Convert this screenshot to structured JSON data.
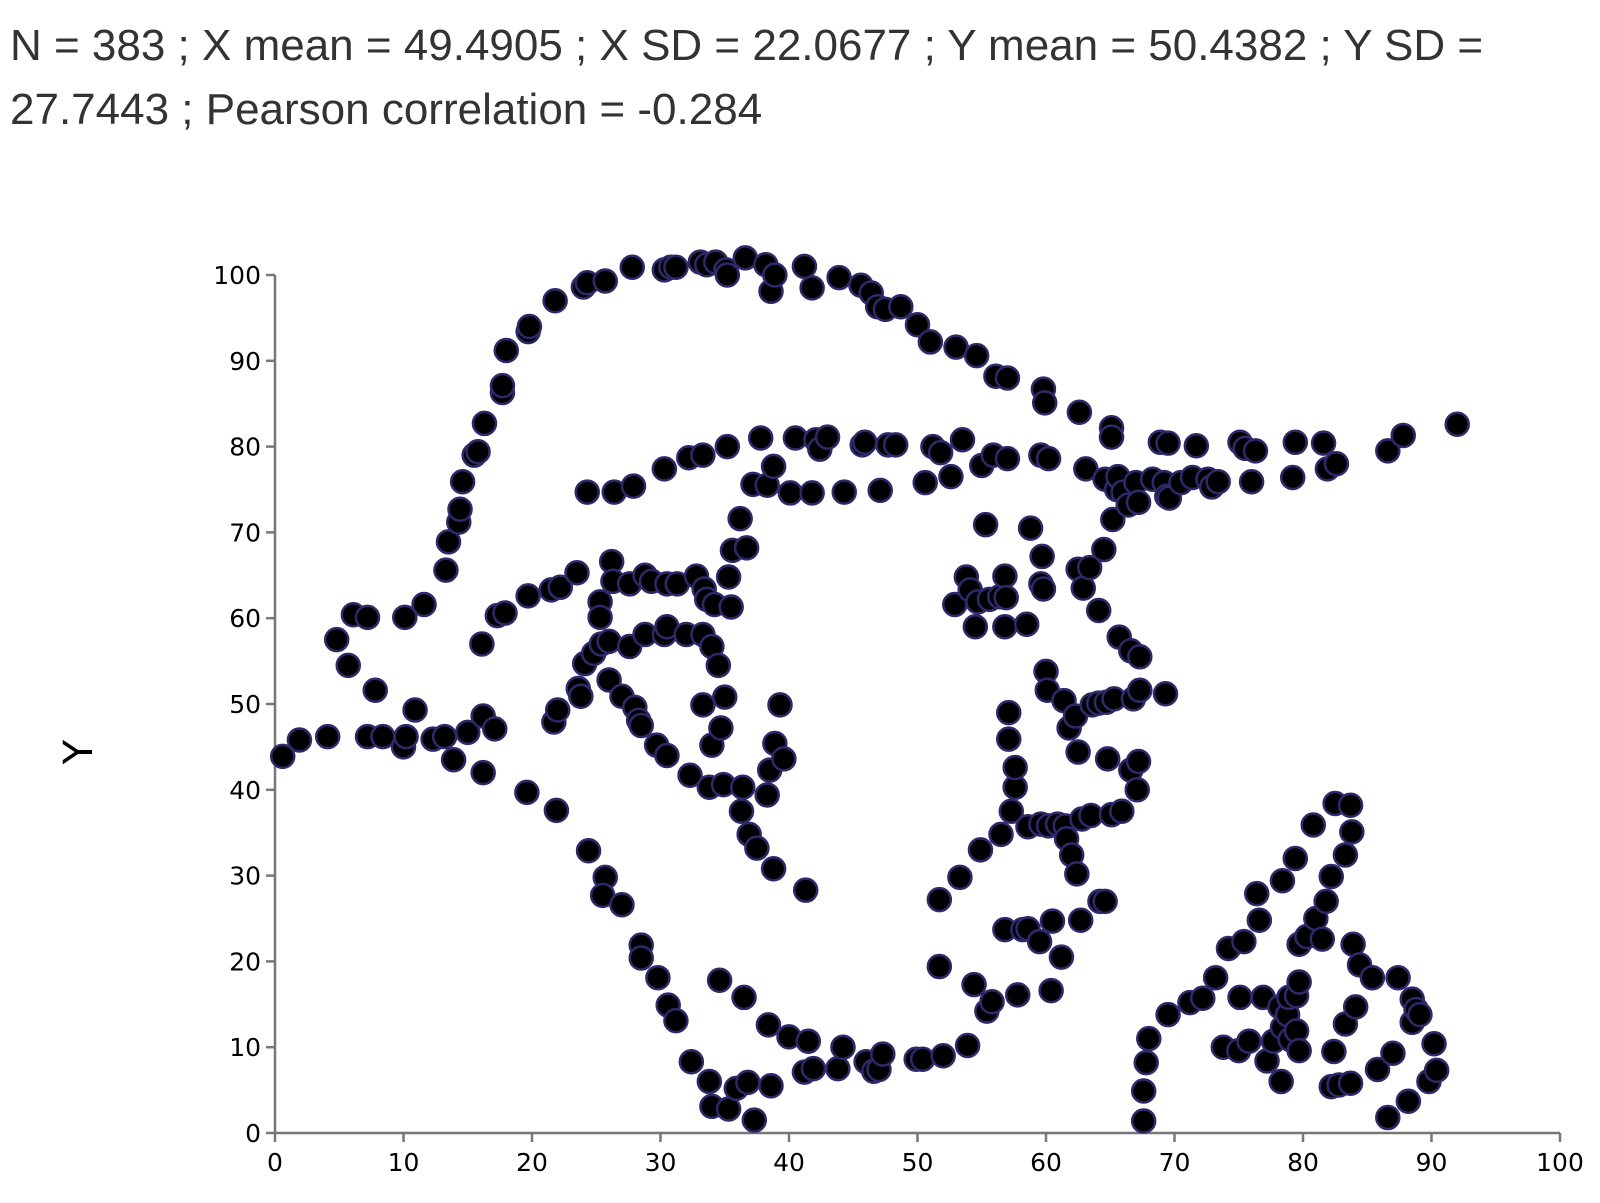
{
  "summary": "N = 383 ; X mean = 49.4905 ; X SD = 22.0677 ; Y mean = 50.4382 ; Y SD = 27.7443 ; Pearson correlation = -0.284",
  "colors": {
    "point_fill": "#000000",
    "point_stroke": "#2d2a6b",
    "axis": "#777777",
    "text": "#333333"
  },
  "chart_data": {
    "type": "scatter",
    "title": "",
    "xlabel": "",
    "ylabel": "Y",
    "xlim": [
      0,
      100
    ],
    "ylim": [
      0,
      100
    ],
    "x_ticks": [
      "0",
      "10",
      "20",
      "30",
      "40",
      "50",
      "60",
      "70",
      "80",
      "90",
      "100"
    ],
    "y_ticks": [
      "0",
      "10",
      "20",
      "30",
      "40",
      "50",
      "60",
      "70",
      "80",
      "90",
      "100"
    ],
    "grid": false,
    "points": [
      [
        0.6,
        43.9
      ],
      [
        1.9,
        45.8
      ],
      [
        4.1,
        46.2
      ],
      [
        4.8,
        57.5
      ],
      [
        5.7,
        54.5
      ],
      [
        6.1,
        60.4
      ],
      [
        7.2,
        60.1
      ],
      [
        7.2,
        46.2
      ],
      [
        7.8,
        51.6
      ],
      [
        8.4,
        46.2
      ],
      [
        10.0,
        45.0
      ],
      [
        10.1,
        60.1
      ],
      [
        10.2,
        46.2
      ],
      [
        10.9,
        49.3
      ],
      [
        11.6,
        61.6
      ],
      [
        12.3,
        45.9
      ],
      [
        13.2,
        46.2
      ],
      [
        13.3,
        65.6
      ],
      [
        13.5,
        68.9
      ],
      [
        13.9,
        43.5
      ],
      [
        14.3,
        71.2
      ],
      [
        14.4,
        72.7
      ],
      [
        14.6,
        75.9
      ],
      [
        15.0,
        46.7
      ],
      [
        15.5,
        79.0
      ],
      [
        15.8,
        79.4
      ],
      [
        16.1,
        57.0
      ],
      [
        16.2,
        42.0
      ],
      [
        16.2,
        48.6
      ],
      [
        16.3,
        82.7
      ],
      [
        17.1,
        47.1
      ],
      [
        17.3,
        60.3
      ],
      [
        17.7,
        86.3
      ],
      [
        17.7,
        87.1
      ],
      [
        17.9,
        60.6
      ],
      [
        18.0,
        91.2
      ],
      [
        19.7,
        62.6
      ],
      [
        19.6,
        39.7
      ],
      [
        19.7,
        93.4
      ],
      [
        19.8,
        94.0
      ],
      [
        21.5,
        63.3
      ],
      [
        21.8,
        97.0
      ],
      [
        21.7,
        47.9
      ],
      [
        21.9,
        37.6
      ],
      [
        22.0,
        49.3
      ],
      [
        22.2,
        63.6
      ],
      [
        23.5,
        65.3
      ],
      [
        23.6,
        51.8
      ],
      [
        23.8,
        50.9
      ],
      [
        24.0,
        98.6
      ],
      [
        24.1,
        54.7
      ],
      [
        24.3,
        99.1
      ],
      [
        24.3,
        74.7
      ],
      [
        24.4,
        32.9
      ],
      [
        24.8,
        55.9
      ],
      [
        25.3,
        61.9
      ],
      [
        25.3,
        60.1
      ],
      [
        25.4,
        57.0
      ],
      [
        25.7,
        99.3
      ],
      [
        25.7,
        29.8
      ],
      [
        25.5,
        27.7
      ],
      [
        26.0,
        52.8
      ],
      [
        26.0,
        57.3
      ],
      [
        26.2,
        66.6
      ],
      [
        26.3,
        64.3
      ],
      [
        26.4,
        74.7
      ],
      [
        27.0,
        50.9
      ],
      [
        27.0,
        26.6
      ],
      [
        27.6,
        56.7
      ],
      [
        27.8,
        100.9
      ],
      [
        27.6,
        64.0
      ],
      [
        27.9,
        75.4
      ],
      [
        28.0,
        49.6
      ],
      [
        28.3,
        48.1
      ],
      [
        28.5,
        47.5
      ],
      [
        28.8,
        65.0
      ],
      [
        28.8,
        58.1
      ],
      [
        28.5,
        21.9
      ],
      [
        28.5,
        20.4
      ],
      [
        29.3,
        64.3
      ],
      [
        29.7,
        45.2
      ],
      [
        29.8,
        18.1
      ],
      [
        30.3,
        77.4
      ],
      [
        30.3,
        58.1
      ],
      [
        30.5,
        64.0
      ],
      [
        30.3,
        100.6
      ],
      [
        30.5,
        59.0
      ],
      [
        30.5,
        44.0
      ],
      [
        30.6,
        14.9
      ],
      [
        30.8,
        100.9
      ],
      [
        31.2,
        13.1
      ],
      [
        31.3,
        64.0
      ],
      [
        31.2,
        100.9
      ],
      [
        32.0,
        58.1
      ],
      [
        32.2,
        78.7
      ],
      [
        32.3,
        41.7
      ],
      [
        32.4,
        8.3
      ],
      [
        32.8,
        64.9
      ],
      [
        33.1,
        101.5
      ],
      [
        33.3,
        58.1
      ],
      [
        33.4,
        63.4
      ],
      [
        33.3,
        49.9
      ],
      [
        33.3,
        79.0
      ],
      [
        33.6,
        101.2
      ],
      [
        33.6,
        62.2
      ],
      [
        33.8,
        6.0
      ],
      [
        33.8,
        40.3
      ],
      [
        34.0,
        56.7
      ],
      [
        34.0,
        45.2
      ],
      [
        34.0,
        3.1
      ],
      [
        34.3,
        101.5
      ],
      [
        34.2,
        61.6
      ],
      [
        34.5,
        54.5
      ],
      [
        34.6,
        17.8
      ],
      [
        34.7,
        47.2
      ],
      [
        34.9,
        40.6
      ],
      [
        35.0,
        50.8
      ],
      [
        35.1,
        100.6
      ],
      [
        35.2,
        100.0
      ],
      [
        35.3,
        64.8
      ],
      [
        35.3,
        2.8
      ],
      [
        35.5,
        61.3
      ],
      [
        35.2,
        80.0
      ],
      [
        35.6,
        67.9
      ],
      [
        35.9,
        5.2
      ],
      [
        36.2,
        71.6
      ],
      [
        36.3,
        37.5
      ],
      [
        36.4,
        40.3
      ],
      [
        36.5,
        15.8
      ],
      [
        36.6,
        102.0
      ],
      [
        36.7,
        68.2
      ],
      [
        36.8,
        5.9
      ],
      [
        36.9,
        34.8
      ],
      [
        37.2,
        75.6
      ],
      [
        37.3,
        1.5
      ],
      [
        37.5,
        33.2
      ],
      [
        37.8,
        81.0
      ],
      [
        38.2,
        101.2
      ],
      [
        38.3,
        75.5
      ],
      [
        38.3,
        39.4
      ],
      [
        38.4,
        12.6
      ],
      [
        38.6,
        98.1
      ],
      [
        38.6,
        5.5
      ],
      [
        38.5,
        42.3
      ],
      [
        38.8,
        77.7
      ],
      [
        38.8,
        30.8
      ],
      [
        38.9,
        100.0
      ],
      [
        38.9,
        45.4
      ],
      [
        39.3,
        49.9
      ],
      [
        39.6,
        43.6
      ],
      [
        40.0,
        11.2
      ],
      [
        40.1,
        74.6
      ],
      [
        40.5,
        81.0
      ],
      [
        41.2,
        101.0
      ],
      [
        41.2,
        7.1
      ],
      [
        41.3,
        28.3
      ],
      [
        41.5,
        10.7
      ],
      [
        41.8,
        98.5
      ],
      [
        41.9,
        7.5
      ],
      [
        41.8,
        74.6
      ],
      [
        42.1,
        80.8
      ],
      [
        42.4,
        79.7
      ],
      [
        43.0,
        81.1
      ],
      [
        43.8,
        7.5
      ],
      [
        43.9,
        99.7
      ],
      [
        44.2,
        10.0
      ],
      [
        44.3,
        74.7
      ],
      [
        45.6,
        98.8
      ],
      [
        45.7,
        80.2
      ],
      [
        45.9,
        80.5
      ],
      [
        46.0,
        8.3
      ],
      [
        46.4,
        97.9
      ],
      [
        46.6,
        7.2
      ],
      [
        46.9,
        96.3
      ],
      [
        47.0,
        7.4
      ],
      [
        47.1,
        74.9
      ],
      [
        47.3,
        9.2
      ],
      [
        47.5,
        96.0
      ],
      [
        47.7,
        80.2
      ],
      [
        48.3,
        80.2
      ],
      [
        48.7,
        96.3
      ],
      [
        50.0,
        94.2
      ],
      [
        49.9,
        8.6
      ],
      [
        50.4,
        8.6
      ],
      [
        50.6,
        75.8
      ],
      [
        51.0,
        92.2
      ],
      [
        51.2,
        80.0
      ],
      [
        51.7,
        19.4
      ],
      [
        51.8,
        79.3
      ],
      [
        51.7,
        27.2
      ],
      [
        52.0,
        9.0
      ],
      [
        52.6,
        76.5
      ],
      [
        52.9,
        61.6
      ],
      [
        53.0,
        91.6
      ],
      [
        53.3,
        29.8
      ],
      [
        53.5,
        80.8
      ],
      [
        53.8,
        64.8
      ],
      [
        53.9,
        10.2
      ],
      [
        54.1,
        63.3
      ],
      [
        54.4,
        17.3
      ],
      [
        54.5,
        59.0
      ],
      [
        54.6,
        90.6
      ],
      [
        54.7,
        61.9
      ],
      [
        54.9,
        33.0
      ],
      [
        55.0,
        77.8
      ],
      [
        55.3,
        70.9
      ],
      [
        55.4,
        14.2
      ],
      [
        55.6,
        62.2
      ],
      [
        55.8,
        15.3
      ],
      [
        55.9,
        79.0
      ],
      [
        56.1,
        88.2
      ],
      [
        56.4,
        62.5
      ],
      [
        56.5,
        34.8
      ],
      [
        56.8,
        59.0
      ],
      [
        56.8,
        64.9
      ],
      [
        56.8,
        23.7
      ],
      [
        56.9,
        62.4
      ],
      [
        57.0,
        88.0
      ],
      [
        57.0,
        78.6
      ],
      [
        57.1,
        49.0
      ],
      [
        57.1,
        45.9
      ],
      [
        57.3,
        37.5
      ],
      [
        57.6,
        40.3
      ],
      [
        57.6,
        42.6
      ],
      [
        57.8,
        16.1
      ],
      [
        58.2,
        23.7
      ],
      [
        58.5,
        59.3
      ],
      [
        58.6,
        35.7
      ],
      [
        58.6,
        23.8
      ],
      [
        58.8,
        70.5
      ],
      [
        59.5,
        22.3
      ],
      [
        59.6,
        36.0
      ],
      [
        59.6,
        64.0
      ],
      [
        59.8,
        63.4
      ],
      [
        59.7,
        67.2
      ],
      [
        59.6,
        79.0
      ],
      [
        59.8,
        86.7
      ],
      [
        59.9,
        85.1
      ],
      [
        60.0,
        53.8
      ],
      [
        60.1,
        51.6
      ],
      [
        60.2,
        78.6
      ],
      [
        60.2,
        35.8
      ],
      [
        60.4,
        16.6
      ],
      [
        60.5,
        24.7
      ],
      [
        60.9,
        36.0
      ],
      [
        61.2,
        20.5
      ],
      [
        61.4,
        50.4
      ],
      [
        61.5,
        35.8
      ],
      [
        61.6,
        34.3
      ],
      [
        61.8,
        47.2
      ],
      [
        62.0,
        32.4
      ],
      [
        62.3,
        48.6
      ],
      [
        62.4,
        30.2
      ],
      [
        62.5,
        44.4
      ],
      [
        62.5,
        65.7
      ],
      [
        62.6,
        84.0
      ],
      [
        62.7,
        24.8
      ],
      [
        62.8,
        36.6
      ],
      [
        62.9,
        63.5
      ],
      [
        63.1,
        77.4
      ],
      [
        63.4,
        65.9
      ],
      [
        63.5,
        37.0
      ],
      [
        63.6,
        49.9
      ],
      [
        64.1,
        60.9
      ],
      [
        64.1,
        50.1
      ],
      [
        64.2,
        27.0
      ],
      [
        64.5,
        68.0
      ],
      [
        64.6,
        76.2
      ],
      [
        64.7,
        50.2
      ],
      [
        64.8,
        43.6
      ],
      [
        64.6,
        27.0
      ],
      [
        65.1,
        37.1
      ],
      [
        65.1,
        82.2
      ],
      [
        65.1,
        81.1
      ],
      [
        65.2,
        71.5
      ],
      [
        65.3,
        50.6
      ],
      [
        65.5,
        75.0
      ],
      [
        65.6,
        76.5
      ],
      [
        65.7,
        57.8
      ],
      [
        65.9,
        37.5
      ],
      [
        66.0,
        74.7
      ],
      [
        66.4,
        73.2
      ],
      [
        66.6,
        56.2
      ],
      [
        66.6,
        42.3
      ],
      [
        66.8,
        50.6
      ],
      [
        67.1,
        40.0
      ],
      [
        67.2,
        43.3
      ],
      [
        67.0,
        75.8
      ],
      [
        67.3,
        55.5
      ],
      [
        67.3,
        51.6
      ],
      [
        67.2,
        73.5
      ],
      [
        67.6,
        1.4
      ],
      [
        67.6,
        4.9
      ],
      [
        67.8,
        8.2
      ],
      [
        68.0,
        11.0
      ],
      [
        68.3,
        76.2
      ],
      [
        68.9,
        80.5
      ],
      [
        69.2,
        75.8
      ],
      [
        69.3,
        51.2
      ],
      [
        69.4,
        74.2
      ],
      [
        69.5,
        13.8
      ],
      [
        69.5,
        80.4
      ],
      [
        69.6,
        74.0
      ],
      [
        70.5,
        75.8
      ],
      [
        71.2,
        15.2
      ],
      [
        71.4,
        76.4
      ],
      [
        71.7,
        80.1
      ],
      [
        72.2,
        15.7
      ],
      [
        72.6,
        76.2
      ],
      [
        72.9,
        75.3
      ],
      [
        73.2,
        18.1
      ],
      [
        73.4,
        75.9
      ],
      [
        73.8,
        10.0
      ],
      [
        74.2,
        21.5
      ],
      [
        75.1,
        80.5
      ],
      [
        75.0,
        9.6
      ],
      [
        75.1,
        15.8
      ],
      [
        75.4,
        22.3
      ],
      [
        75.5,
        79.8
      ],
      [
        75.8,
        10.7
      ],
      [
        76.0,
        75.9
      ],
      [
        76.3,
        79.5
      ],
      [
        76.4,
        27.9
      ],
      [
        76.6,
        24.8
      ],
      [
        76.9,
        15.8
      ],
      [
        77.2,
        8.4
      ],
      [
        77.7,
        10.7
      ],
      [
        78.2,
        14.7
      ],
      [
        78.3,
        6.0
      ],
      [
        78.4,
        12.3
      ],
      [
        78.4,
        29.4
      ],
      [
        78.8,
        13.8
      ],
      [
        78.9,
        15.8
      ],
      [
        79.0,
        10.9
      ],
      [
        79.2,
        76.4
      ],
      [
        79.4,
        80.5
      ],
      [
        79.4,
        32.0
      ],
      [
        79.5,
        16.0
      ],
      [
        79.5,
        11.9
      ],
      [
        79.7,
        22.0
      ],
      [
        79.7,
        17.6
      ],
      [
        79.7,
        9.6
      ],
      [
        80.3,
        22.9
      ],
      [
        80.8,
        35.9
      ],
      [
        81.0,
        25.0
      ],
      [
        81.5,
        22.6
      ],
      [
        81.6,
        80.4
      ],
      [
        81.8,
        27.0
      ],
      [
        81.9,
        77.4
      ],
      [
        82.2,
        29.9
      ],
      [
        82.2,
        5.4
      ],
      [
        82.4,
        9.5
      ],
      [
        82.5,
        38.4
      ],
      [
        82.6,
        78.0
      ],
      [
        82.8,
        5.6
      ],
      [
        83.3,
        32.4
      ],
      [
        83.3,
        12.7
      ],
      [
        83.7,
        38.2
      ],
      [
        83.7,
        5.8
      ],
      [
        83.8,
        35.1
      ],
      [
        83.9,
        22.0
      ],
      [
        84.1,
        14.7
      ],
      [
        84.4,
        19.6
      ],
      [
        85.4,
        18.1
      ],
      [
        85.8,
        7.4
      ],
      [
        86.6,
        1.8
      ],
      [
        86.6,
        79.5
      ],
      [
        87.0,
        9.3
      ],
      [
        87.4,
        18.1
      ],
      [
        87.8,
        81.3
      ],
      [
        88.2,
        3.7
      ],
      [
        88.5,
        15.6
      ],
      [
        88.5,
        12.9
      ],
      [
        88.8,
        14.4
      ],
      [
        89.1,
        13.8
      ],
      [
        89.8,
        6.0
      ],
      [
        90.2,
        10.4
      ],
      [
        90.4,
        7.3
      ],
      [
        92.0,
        82.6
      ]
    ]
  }
}
